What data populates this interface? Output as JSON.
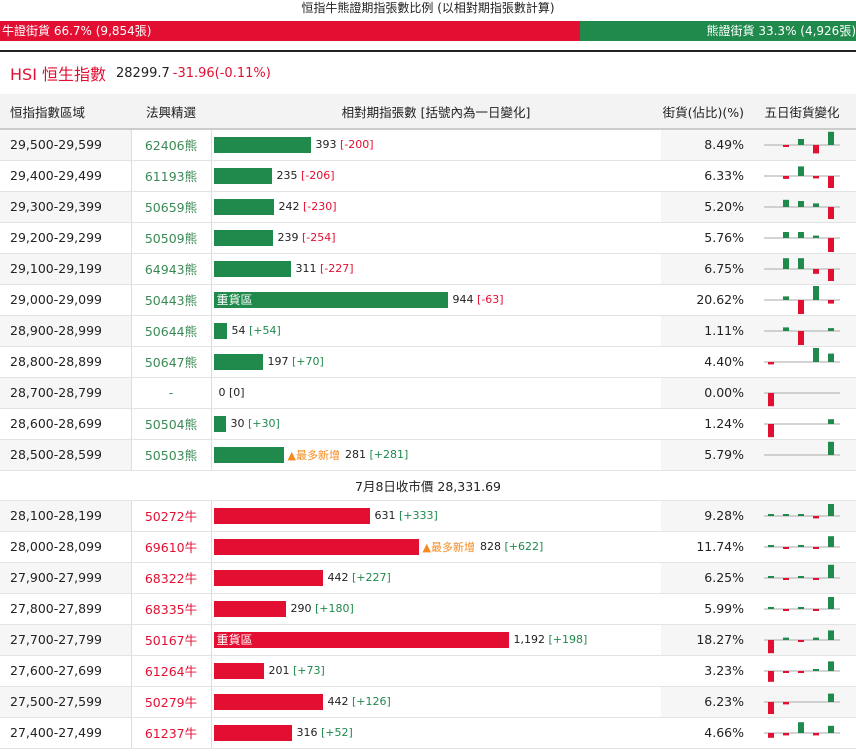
{
  "ratio": {
    "title": "恒指牛熊證期指張數比例 (以相對期指張數計算)",
    "bull_label": "牛證街貨 66.7% (9,854張)",
    "bear_label": "熊證街貨 33.3% (4,926張)",
    "bull_fraction": 0.667,
    "colors": {
      "bull": "#e30f33",
      "bear": "#1f8a4c"
    }
  },
  "index": {
    "name": "HSI 恒生指數",
    "value": "28299.7",
    "change": "-31.96(-0.11%)"
  },
  "table": {
    "headers": {
      "range": "恒指指數區域",
      "code": "法興精選",
      "contracts": "相對期指張數 [括號內為一日變化]",
      "pct": "街貨(佔比)(%)",
      "spark": "五日街貨變化"
    },
    "max_contracts": 1192,
    "bear_rows": [
      {
        "range": "29,500-29,599",
        "code": "62406熊",
        "contracts": 393,
        "value": "393",
        "change": "[-200]",
        "change_dir": "neg",
        "pct": "8.49%",
        "tag": "",
        "spark": [
          0.0,
          -0.03,
          0.25,
          -0.35,
          0.55
        ]
      },
      {
        "range": "29,400-29,499",
        "code": "61193熊",
        "contracts": 235,
        "value": "235",
        "change": "[-206]",
        "change_dir": "neg",
        "pct": "6.33%",
        "tag": "",
        "spark": [
          0.0,
          -0.12,
          0.4,
          -0.1,
          -0.5
        ]
      },
      {
        "range": "29,300-29,399",
        "code": "50659熊",
        "contracts": 242,
        "value": "242",
        "change": "[-230]",
        "change_dir": "neg",
        "pct": "5.20%",
        "tag": "",
        "spark": [
          0.0,
          0.3,
          0.25,
          0.15,
          -0.5
        ]
      },
      {
        "range": "29,200-29,299",
        "code": "50509熊",
        "contracts": 239,
        "value": "239",
        "change": "[-254]",
        "change_dir": "neg",
        "pct": "5.76%",
        "tag": "",
        "spark": [
          0.0,
          0.25,
          0.25,
          0.1,
          -0.6
        ]
      },
      {
        "range": "29,100-29,199",
        "code": "64943熊",
        "contracts": 311,
        "value": "311",
        "change": "[-227]",
        "change_dir": "neg",
        "pct": "6.75%",
        "tag": "",
        "spark": [
          0.0,
          0.45,
          0.45,
          -0.2,
          -0.5
        ]
      },
      {
        "range": "29,000-29,099",
        "code": "50443熊",
        "contracts": 944,
        "value": "944",
        "change": "[-63]",
        "change_dir": "neg",
        "pct": "20.62%",
        "tag": "重貨區",
        "spark": [
          0.0,
          0.15,
          -0.6,
          0.6,
          -0.15
        ]
      },
      {
        "range": "28,900-28,999",
        "code": "50644熊",
        "contracts": 54,
        "value": "54",
        "change": "[+54]",
        "change_dir": "pos",
        "pct": "1.11%",
        "tag": "",
        "spark": [
          0.0,
          0.15,
          -0.6,
          0.0,
          0.12
        ]
      },
      {
        "range": "28,800-28,899",
        "code": "50647熊",
        "contracts": 197,
        "value": "197",
        "change": "[+70]",
        "change_dir": "pos",
        "pct": "4.40%",
        "tag": "",
        "spark": [
          -0.1,
          0.0,
          0.0,
          0.6,
          0.35
        ]
      },
      {
        "range": "28,700-28,799",
        "code": "-",
        "contracts": 0,
        "value": "0",
        "change": "[0]",
        "change_dir": "none",
        "pct": "0.00%",
        "tag": "",
        "spark": [
          -0.55,
          0.0,
          0.0,
          0.0,
          0.0
        ]
      },
      {
        "range": "28,600-28,699",
        "code": "50504熊",
        "contracts": 30,
        "value": "30",
        "change": "[+30]",
        "change_dir": "pos",
        "pct": "1.24%",
        "tag": "",
        "spark": [
          -0.55,
          0.0,
          0.0,
          0.0,
          0.2
        ]
      },
      {
        "range": "28,500-28,599",
        "code": "50503熊",
        "contracts": 281,
        "value": "281",
        "change": "[+281]",
        "change_dir": "pos",
        "pct": "5.79%",
        "tag": "▲最多新增",
        "spark": [
          0.0,
          0.0,
          0.0,
          0.0,
          0.55
        ]
      }
    ],
    "close_text": "7月8日收市價 28,331.69",
    "bull_rows": [
      {
        "range": "28,100-28,199",
        "code": "50272牛",
        "contracts": 631,
        "value": "631",
        "change": "[+333]",
        "change_dir": "pos",
        "pct": "9.28%",
        "tag": "",
        "spark": [
          0.04,
          0.04,
          0.08,
          -0.1,
          0.5
        ]
      },
      {
        "range": "28,000-28,099",
        "code": "69610牛",
        "contracts": 828,
        "value": "828",
        "change": "[+622]",
        "change_dir": "pos",
        "pct": "11.74%",
        "tag": "▲最多新增",
        "spark": [
          0.04,
          -0.04,
          0.04,
          -0.06,
          0.45
        ]
      },
      {
        "range": "27,900-27,999",
        "code": "68322牛",
        "contracts": 442,
        "value": "442",
        "change": "[+227]",
        "change_dir": "pos",
        "pct": "6.25%",
        "tag": "",
        "spark": [
          0.06,
          -0.04,
          0.04,
          -0.04,
          0.55
        ]
      },
      {
        "range": "27,800-27,899",
        "code": "68335牛",
        "contracts": 290,
        "value": "290",
        "change": "[+180]",
        "change_dir": "pos",
        "pct": "5.99%",
        "tag": "",
        "spark": [
          0.06,
          -0.04,
          0.04,
          -0.04,
          0.5
        ]
      },
      {
        "range": "27,700-27,799",
        "code": "50167牛",
        "contracts": 1192,
        "value": "1,192",
        "change": "[+198]",
        "change_dir": "pos",
        "pct": "18.27%",
        "tag": "重貨區",
        "spark": [
          -0.55,
          0.1,
          -0.08,
          0.1,
          0.4
        ]
      },
      {
        "range": "27,600-27,699",
        "code": "61264牛",
        "contracts": 201,
        "value": "201",
        "change": "[+73]",
        "change_dir": "pos",
        "pct": "3.23%",
        "tag": "",
        "spark": [
          -0.45,
          -0.08,
          -0.06,
          0.08,
          0.4
        ]
      },
      {
        "range": "27,500-27,599",
        "code": "50279牛",
        "contracts": 442,
        "value": "442",
        "change": "[+126]",
        "change_dir": "pos",
        "pct": "6.23%",
        "tag": "",
        "spark": [
          -0.5,
          -0.1,
          0.0,
          0.0,
          0.35
        ]
      },
      {
        "range": "27,400-27,499",
        "code": "61237牛",
        "contracts": 316,
        "value": "316",
        "change": "[+52]",
        "change_dir": "pos",
        "pct": "4.66%",
        "tag": "",
        "spark": [
          -0.2,
          -0.1,
          0.45,
          -0.1,
          0.3
        ]
      }
    ]
  }
}
